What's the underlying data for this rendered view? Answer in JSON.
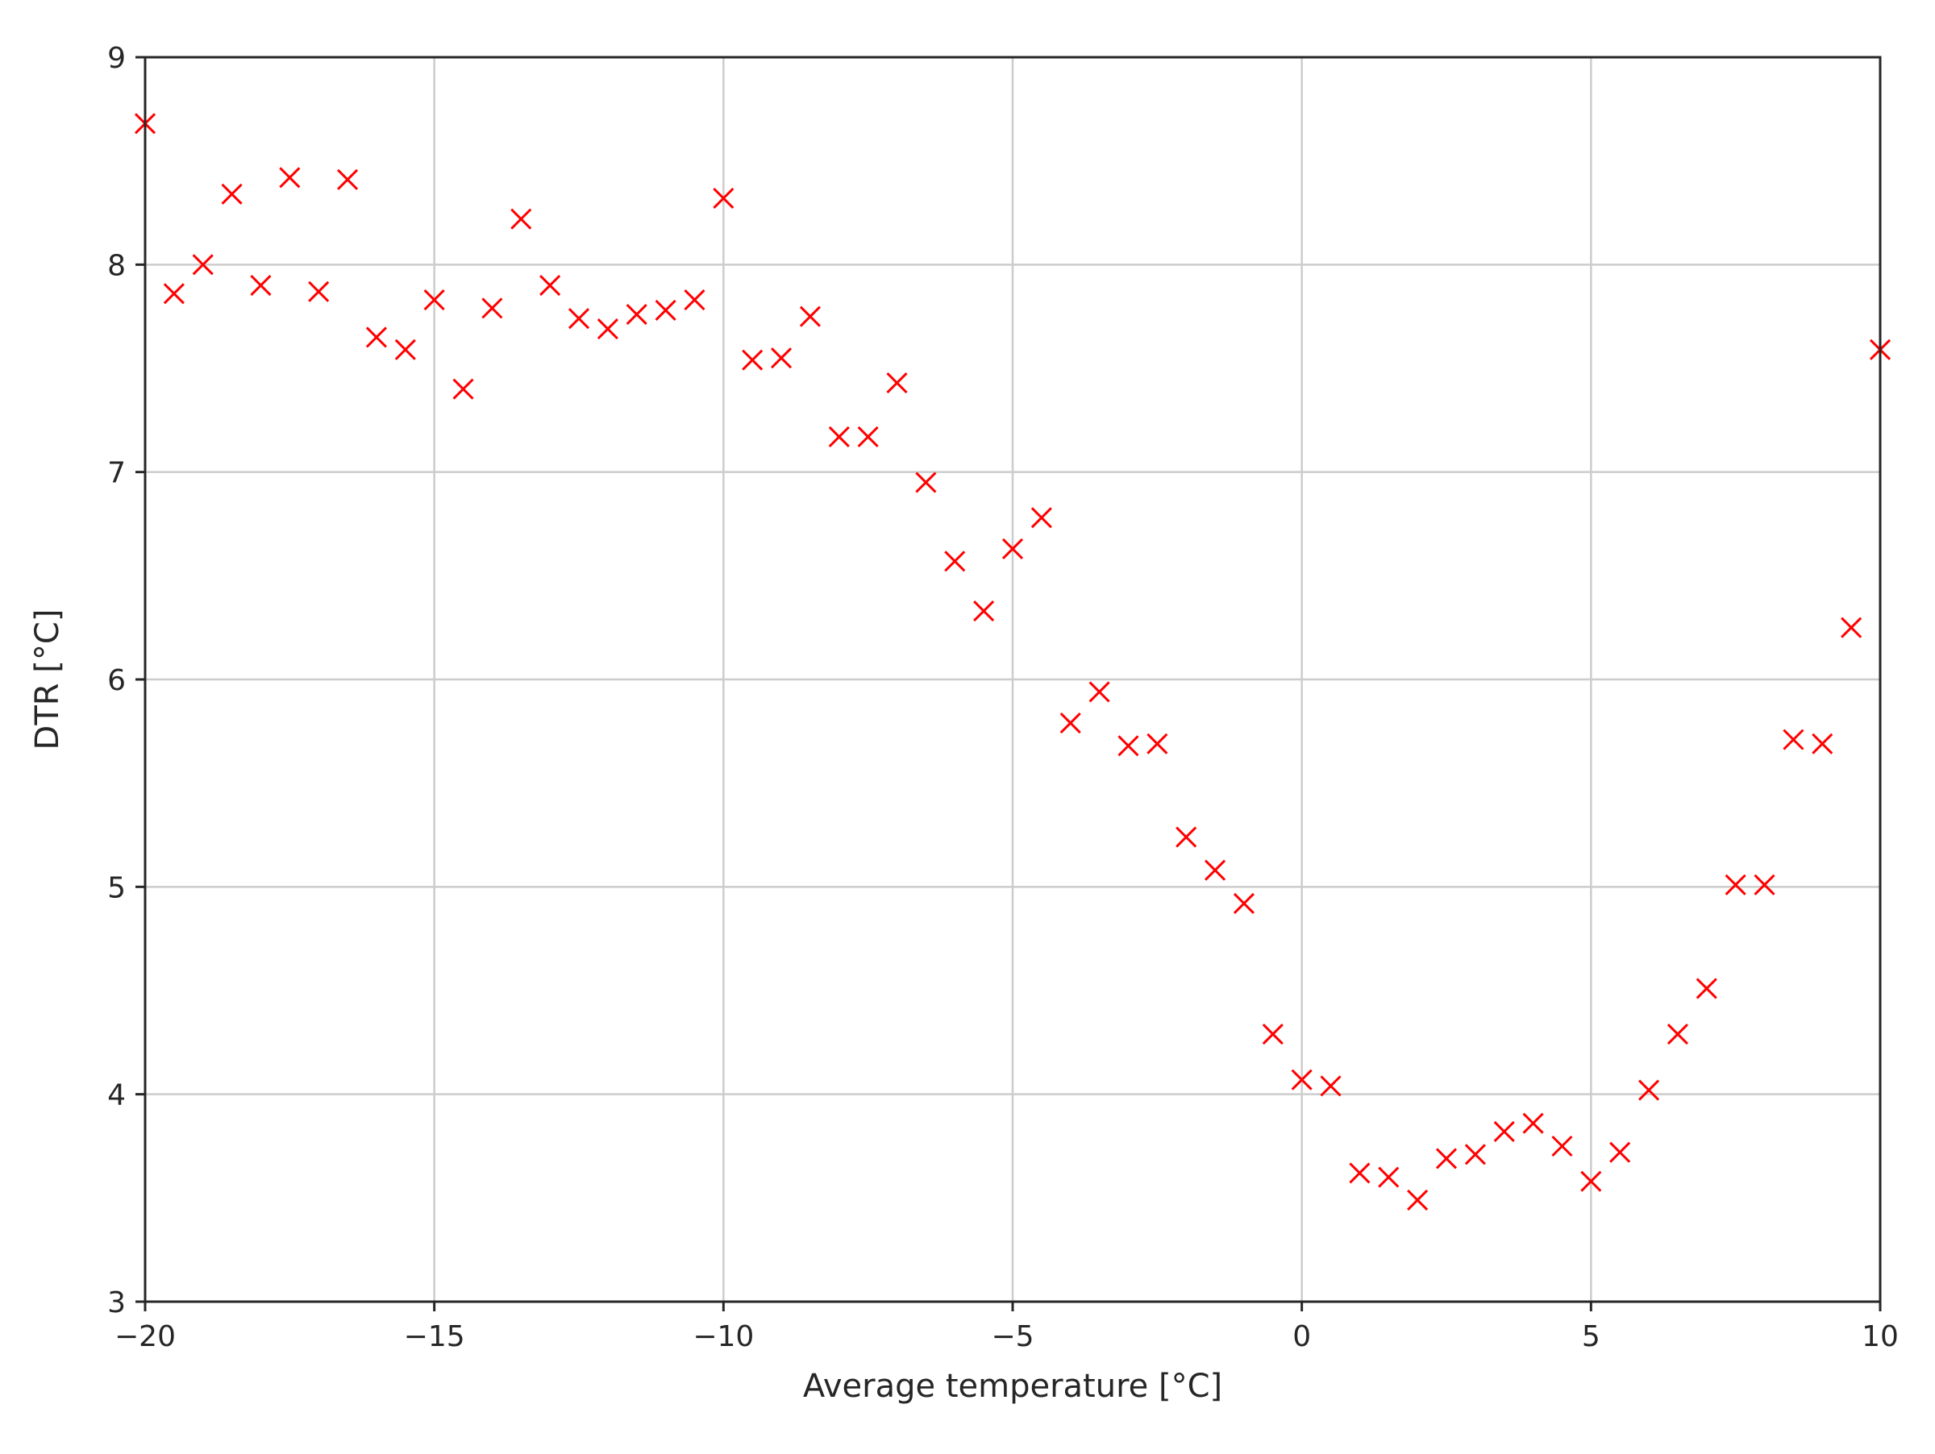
{
  "chart_data": {
    "type": "scatter",
    "title": "",
    "xlabel": "Average temperature [°C]",
    "ylabel": "DTR [°C]",
    "xlim": [
      -20,
      10
    ],
    "ylim": [
      3,
      9
    ],
    "x_ticks": [
      -20,
      -15,
      -10,
      -5,
      0,
      5,
      10
    ],
    "x_tick_labels": [
      "−20",
      "−15",
      "−10",
      "−5",
      "0",
      "5",
      "10"
    ],
    "y_ticks": [
      3,
      4,
      5,
      6,
      7,
      8,
      9
    ],
    "y_tick_labels": [
      "3",
      "4",
      "5",
      "6",
      "7",
      "8",
      "9"
    ],
    "grid": true,
    "marker": "x",
    "colors": {
      "marker": "#ff0000",
      "grid": "#cccccc",
      "axes": "#262626",
      "text": "#262626"
    },
    "series": [
      {
        "x": [
          -20,
          -19.5,
          -19,
          -18.5,
          -18,
          -17.5,
          -17,
          -16.5,
          -16,
          -15.5,
          -15,
          -14.5,
          -14,
          -13.5,
          -13,
          -12.5,
          -12,
          -11.5,
          -11,
          -10.5,
          -10,
          -9.5,
          -9,
          -8.5,
          -8,
          -7.5,
          -7,
          -6.5,
          -6,
          -5.5,
          -5,
          -4.5,
          -4,
          -3.5,
          -3,
          -2.5,
          -2,
          -1.5,
          -1,
          -0.5,
          0,
          0.5,
          1,
          1.5,
          2,
          2.5,
          3,
          3.5,
          4,
          4.5,
          5,
          5.5,
          6,
          6.5,
          7,
          7.5,
          8,
          8.5,
          9,
          9.5,
          10
        ],
        "y": [
          8.68,
          7.86,
          8.0,
          8.34,
          7.9,
          8.42,
          7.87,
          8.41,
          7.65,
          7.59,
          7.83,
          7.4,
          7.79,
          8.22,
          7.9,
          7.74,
          7.69,
          7.76,
          7.78,
          7.83,
          8.32,
          7.54,
          7.55,
          7.75,
          7.17,
          7.17,
          7.43,
          6.95,
          6.57,
          6.33,
          6.63,
          6.78,
          5.79,
          5.94,
          5.68,
          5.69,
          5.24,
          5.08,
          4.92,
          4.29,
          4.07,
          4.04,
          3.62,
          3.6,
          3.49,
          3.69,
          3.71,
          3.82,
          3.86,
          3.75,
          3.58,
          3.72,
          4.02,
          4.29,
          4.51,
          5.01,
          5.01,
          5.71,
          5.69,
          6.25,
          7.59
        ]
      }
    ]
  }
}
